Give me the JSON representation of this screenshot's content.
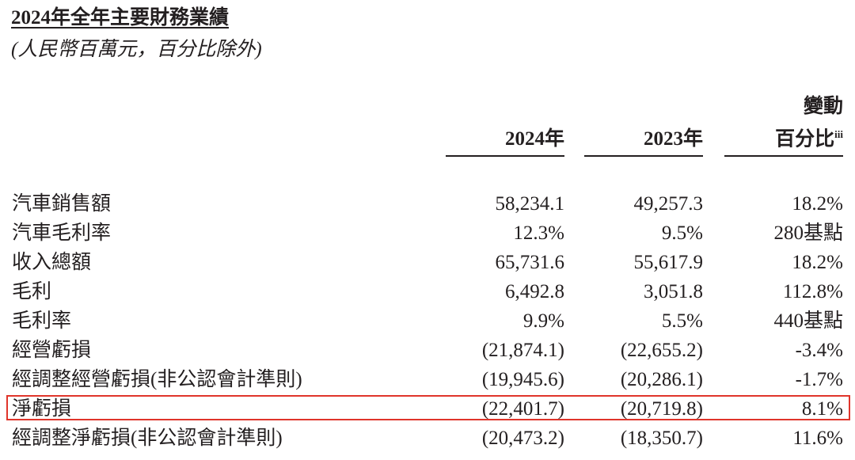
{
  "header": {
    "title": "2024年全年主要財務業績",
    "subtitle": "(人民幣百萬元，百分比除外)"
  },
  "table": {
    "columns": [
      {
        "label": "2024年"
      },
      {
        "label": "2023年"
      },
      {
        "line1": "變動",
        "line2": "百分比",
        "note": "iii"
      }
    ],
    "rows": [
      [
        "汽車銷售額",
        "58,234.1",
        "49,257.3",
        "18.2%"
      ],
      [
        "汽車毛利率",
        "12.3%",
        "9.5%",
        "280基點"
      ],
      [
        "收入總額",
        "65,731.6",
        "55,617.9",
        "18.2%"
      ],
      [
        "毛利",
        "6,492.8",
        "3,051.8",
        "112.8%"
      ],
      [
        "毛利率",
        "9.9%",
        "5.5%",
        "440基點"
      ],
      [
        "經營虧損",
        "(21,874.1)",
        "(22,655.2)",
        "-3.4%"
      ],
      [
        "經調整經營虧損(非公認會計準則)",
        "(19,945.6)",
        "(20,286.1)",
        "-1.7%"
      ],
      [
        "淨虧損",
        "(22,401.7)",
        "(20,719.8)",
        "8.1%"
      ],
      [
        "經調整淨虧損(非公認會計準則)",
        "(20,473.2)",
        "(18,350.7)",
        "11.6%"
      ]
    ]
  }
}
